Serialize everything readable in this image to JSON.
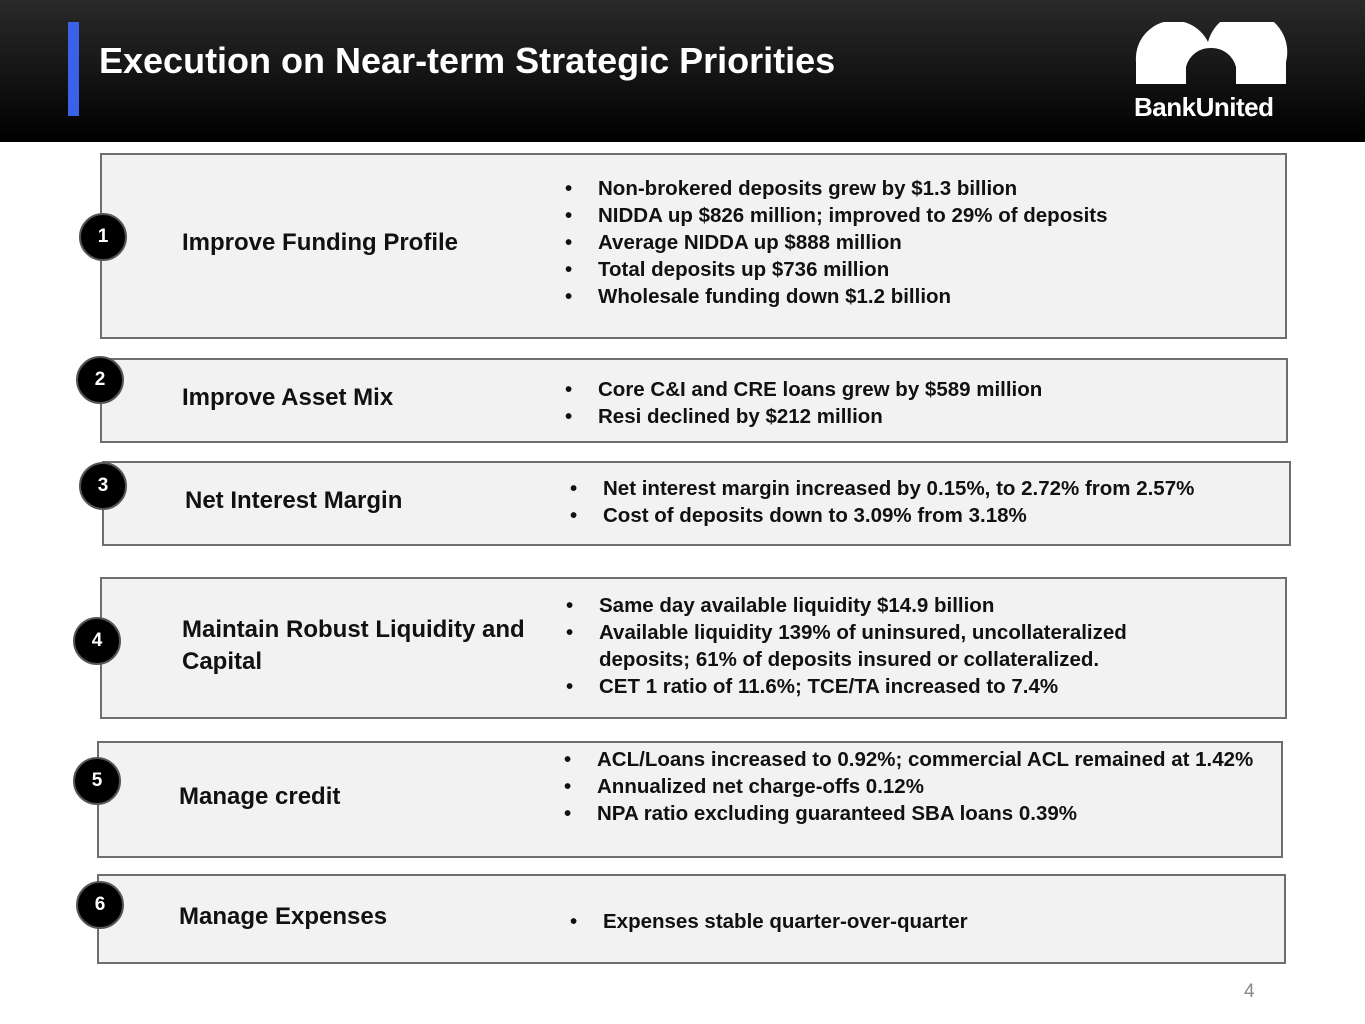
{
  "header": {
    "title": "Execution on Near-term Strategic Priorities",
    "logo_text": "BankUnited"
  },
  "priorities": [
    {
      "number": "1",
      "label": "Improve Funding Profile",
      "bullets": [
        "Non-brokered deposits grew by $1.3 billion",
        "NIDDA up $826 million; improved to 29% of deposits",
        "Average NIDDA up $888 million",
        "Total deposits up $736 million",
        "Wholesale funding down $1.2 billion"
      ]
    },
    {
      "number": "2",
      "label": "Improve Asset Mix",
      "bullets": [
        "Core C&I and CRE loans grew by $589 million",
        "Resi declined by $212 million"
      ]
    },
    {
      "number": "3",
      "label": "Net Interest Margin",
      "bullets": [
        "Net interest margin increased by 0.15%, to 2.72% from 2.57%",
        "Cost of deposits down to 3.09% from 3.18%"
      ]
    },
    {
      "number": "4",
      "label": "Maintain Robust Liquidity and Capital",
      "bullets": [
        "Same day available liquidity $14.9 billion",
        "Available liquidity 139% of uninsured, uncollateralized deposits; 61% of deposits insured or collateralized.",
        "CET 1 ratio of 11.6%; TCE/TA increased to 7.4%"
      ]
    },
    {
      "number": "5",
      "label": "Manage credit",
      "bullets": [
        "ACL/Loans increased to 0.92%; commercial ACL remained at 1.42%",
        "Annualized net charge-offs 0.12%",
        "NPA ratio excluding guaranteed SBA loans 0.39%"
      ]
    },
    {
      "number": "6",
      "label": "Manage Expenses",
      "bullets": [
        "Expenses stable quarter-over-quarter"
      ]
    }
  ],
  "page_number": "4"
}
